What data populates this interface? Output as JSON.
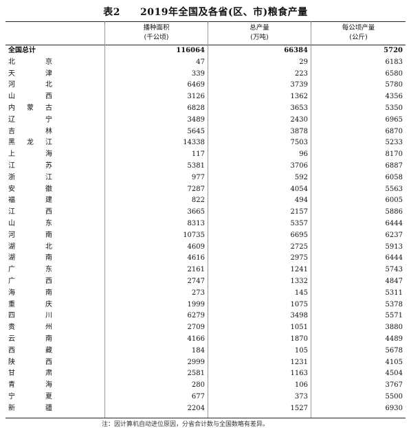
{
  "title": "表2　　2019年全国及各省(区、市)粮食产量",
  "headers": {
    "c0": "",
    "c1_line1": "播种面积",
    "c1_line2": "(千公顷)",
    "c2_line1": "总产量",
    "c2_line2": "(万吨)",
    "c3_line1": "每公顷产量",
    "c3_line2": "(公斤)"
  },
  "rows": [
    {
      "name": "全国总计",
      "area": "116064",
      "output": "66384",
      "yield": "5720"
    },
    {
      "name": "北京",
      "area": "47",
      "output": "29",
      "yield": "6183"
    },
    {
      "name": "天津",
      "area": "339",
      "output": "223",
      "yield": "6580"
    },
    {
      "name": "河北",
      "area": "6469",
      "output": "3739",
      "yield": "5780"
    },
    {
      "name": "山西",
      "area": "3126",
      "output": "1362",
      "yield": "4356"
    },
    {
      "name": "内蒙古",
      "area": "6828",
      "output": "3653",
      "yield": "5350"
    },
    {
      "name": "辽宁",
      "area": "3489",
      "output": "2430",
      "yield": "6965"
    },
    {
      "name": "吉林",
      "area": "5645",
      "output": "3878",
      "yield": "6870"
    },
    {
      "name": "黑龙江",
      "area": "14338",
      "output": "7503",
      "yield": "5233"
    },
    {
      "name": "上海",
      "area": "117",
      "output": "96",
      "yield": "8170"
    },
    {
      "name": "江苏",
      "area": "5381",
      "output": "3706",
      "yield": "6887"
    },
    {
      "name": "浙江",
      "area": "977",
      "output": "592",
      "yield": "6058"
    },
    {
      "name": "安徽",
      "area": "7287",
      "output": "4054",
      "yield": "5563"
    },
    {
      "name": "福建",
      "area": "822",
      "output": "494",
      "yield": "6005"
    },
    {
      "name": "江西",
      "area": "3665",
      "output": "2157",
      "yield": "5886"
    },
    {
      "name": "山东",
      "area": "8313",
      "output": "5357",
      "yield": "6444"
    },
    {
      "name": "河南",
      "area": "10735",
      "output": "6695",
      "yield": "6237"
    },
    {
      "name": "湖北",
      "area": "4609",
      "output": "2725",
      "yield": "5913"
    },
    {
      "name": "湖南",
      "area": "4616",
      "output": "2975",
      "yield": "6444"
    },
    {
      "name": "广东",
      "area": "2161",
      "output": "1241",
      "yield": "5743"
    },
    {
      "name": "广西",
      "area": "2747",
      "output": "1332",
      "yield": "4847"
    },
    {
      "name": "海南",
      "area": "273",
      "output": "145",
      "yield": "5311"
    },
    {
      "name": "重庆",
      "area": "1999",
      "output": "1075",
      "yield": "5378"
    },
    {
      "name": "四川",
      "area": "6279",
      "output": "3498",
      "yield": "5571"
    },
    {
      "name": "贵州",
      "area": "2709",
      "output": "1051",
      "yield": "3880"
    },
    {
      "name": "云南",
      "area": "4166",
      "output": "1870",
      "yield": "4489"
    },
    {
      "name": "西藏",
      "area": "184",
      "output": "105",
      "yield": "5678"
    },
    {
      "name": "陕西",
      "area": "2999",
      "output": "1231",
      "yield": "4105"
    },
    {
      "name": "甘肃",
      "area": "2581",
      "output": "1163",
      "yield": "4504"
    },
    {
      "name": "青海",
      "area": "280",
      "output": "106",
      "yield": "3767"
    },
    {
      "name": "宁夏",
      "area": "677",
      "output": "373",
      "yield": "5500"
    },
    {
      "name": "新疆",
      "area": "2204",
      "output": "1527",
      "yield": "6930"
    }
  ],
  "note": "注：因计算机自动进位原因，分省合计数与全国数略有差异。"
}
